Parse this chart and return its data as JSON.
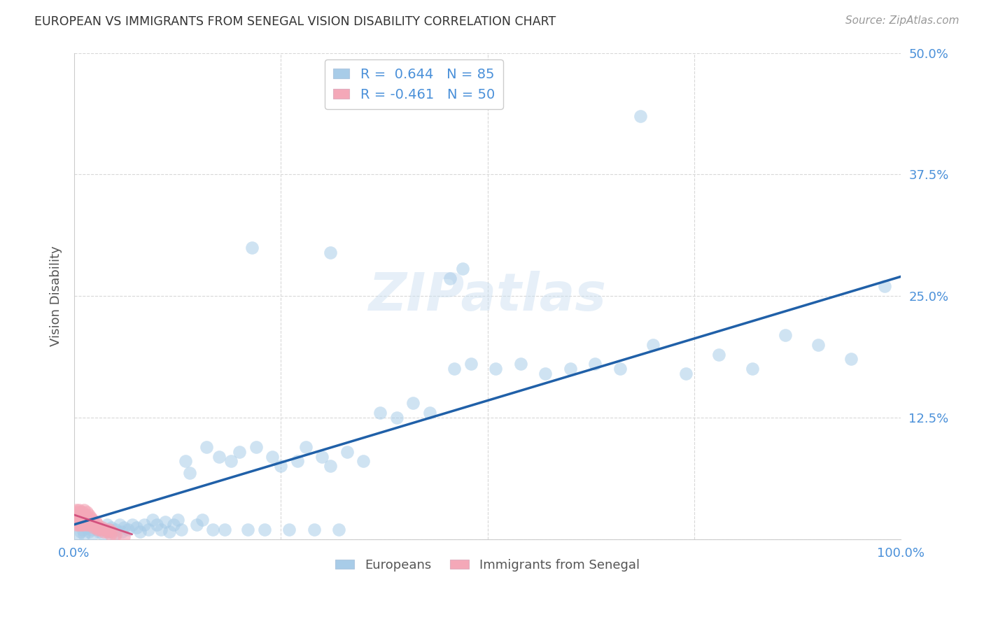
{
  "title": "EUROPEAN VS IMMIGRANTS FROM SENEGAL VISION DISABILITY CORRELATION CHART",
  "source": "Source: ZipAtlas.com",
  "ylabel": "Vision Disability",
  "background_color": "#ffffff",
  "blue_color": "#a8cce8",
  "pink_color": "#f4a8b8",
  "line_blue": "#2060a8",
  "line_pink": "#d04878",
  "R_blue": 0.644,
  "N_blue": 85,
  "R_pink": -0.461,
  "N_pink": 50,
  "xmin": 0.0,
  "xmax": 1.0,
  "ymin": 0.0,
  "ymax": 0.5,
  "grid_color": "#d8d8d8",
  "tick_color": "#4a90d9",
  "title_color": "#333333",
  "source_color": "#999999",
  "watermark": "ZIPatlas",
  "blue_x": [
    0.005,
    0.008,
    0.01,
    0.012,
    0.015,
    0.018,
    0.02,
    0.022,
    0.025,
    0.028,
    0.03,
    0.032,
    0.035,
    0.038,
    0.04,
    0.042,
    0.045,
    0.048,
    0.05,
    0.055,
    0.058,
    0.06,
    0.065,
    0.07,
    0.075,
    0.08,
    0.085,
    0.09,
    0.095,
    0.1,
    0.105,
    0.11,
    0.115,
    0.12,
    0.125,
    0.13,
    0.135,
    0.14,
    0.148,
    0.155,
    0.16,
    0.168,
    0.175,
    0.182,
    0.19,
    0.2,
    0.21,
    0.22,
    0.23,
    0.24,
    0.25,
    0.26,
    0.27,
    0.28,
    0.29,
    0.3,
    0.31,
    0.32,
    0.33,
    0.35,
    0.37,
    0.39,
    0.41,
    0.43,
    0.46,
    0.48,
    0.51,
    0.54,
    0.57,
    0.6,
    0.63,
    0.66,
    0.7,
    0.74,
    0.78,
    0.82,
    0.86,
    0.9,
    0.94,
    0.98,
    0.215,
    0.31,
    0.455,
    0.47,
    0.685
  ],
  "blue_y": [
    0.005,
    0.008,
    0.01,
    0.005,
    0.012,
    0.008,
    0.01,
    0.005,
    0.015,
    0.01,
    0.008,
    0.012,
    0.005,
    0.01,
    0.015,
    0.008,
    0.012,
    0.005,
    0.01,
    0.015,
    0.008,
    0.012,
    0.01,
    0.015,
    0.012,
    0.008,
    0.015,
    0.01,
    0.02,
    0.015,
    0.01,
    0.018,
    0.008,
    0.015,
    0.02,
    0.01,
    0.08,
    0.068,
    0.015,
    0.02,
    0.095,
    0.01,
    0.085,
    0.01,
    0.08,
    0.09,
    0.01,
    0.095,
    0.01,
    0.085,
    0.075,
    0.01,
    0.08,
    0.095,
    0.01,
    0.085,
    0.075,
    0.01,
    0.09,
    0.08,
    0.13,
    0.125,
    0.14,
    0.13,
    0.175,
    0.18,
    0.175,
    0.18,
    0.17,
    0.175,
    0.18,
    0.175,
    0.2,
    0.17,
    0.19,
    0.175,
    0.21,
    0.2,
    0.185,
    0.26,
    0.3,
    0.295,
    0.268,
    0.278,
    0.435
  ],
  "pink_x": [
    0.001,
    0.002,
    0.003,
    0.003,
    0.004,
    0.004,
    0.005,
    0.005,
    0.006,
    0.006,
    0.007,
    0.007,
    0.008,
    0.008,
    0.009,
    0.009,
    0.01,
    0.01,
    0.011,
    0.012,
    0.012,
    0.013,
    0.014,
    0.015,
    0.015,
    0.016,
    0.017,
    0.018,
    0.019,
    0.02,
    0.021,
    0.022,
    0.023,
    0.024,
    0.025,
    0.026,
    0.027,
    0.028,
    0.029,
    0.03,
    0.032,
    0.034,
    0.036,
    0.038,
    0.04,
    0.042,
    0.044,
    0.046,
    0.05,
    0.06
  ],
  "pink_y": [
    0.02,
    0.025,
    0.015,
    0.03,
    0.018,
    0.028,
    0.015,
    0.025,
    0.02,
    0.03,
    0.015,
    0.025,
    0.018,
    0.028,
    0.015,
    0.022,
    0.018,
    0.028,
    0.015,
    0.022,
    0.03,
    0.018,
    0.025,
    0.015,
    0.028,
    0.02,
    0.015,
    0.025,
    0.018,
    0.022,
    0.015,
    0.02,
    0.018,
    0.012,
    0.015,
    0.018,
    0.012,
    0.015,
    0.01,
    0.012,
    0.01,
    0.012,
    0.008,
    0.01,
    0.008,
    0.01,
    0.005,
    0.008,
    0.005,
    0.003
  ],
  "line_blue_x0": 0.0,
  "line_blue_y0": 0.015,
  "line_blue_x1": 1.0,
  "line_blue_y1": 0.27,
  "line_pink_x0": 0.0,
  "line_pink_y0": 0.025,
  "line_pink_x1": 0.07,
  "line_pink_y1": 0.005
}
